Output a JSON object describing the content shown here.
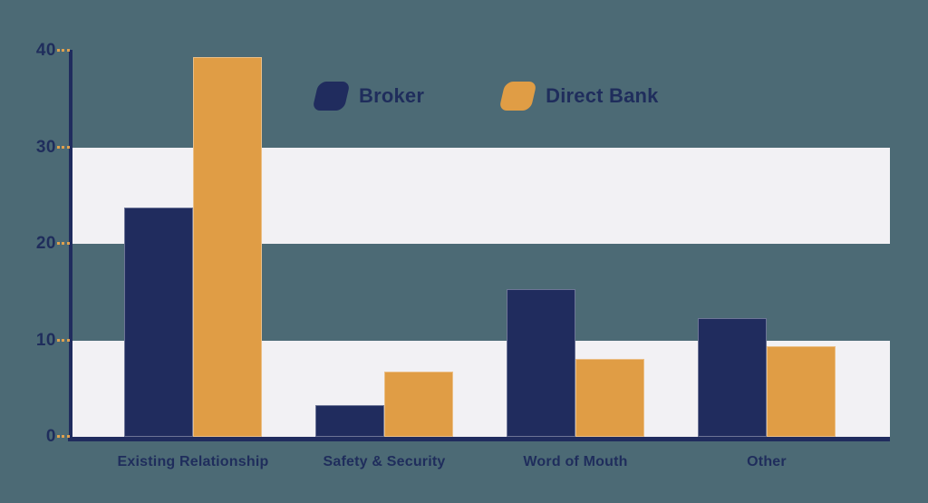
{
  "chart_data": {
    "type": "bar",
    "title": "",
    "categories": [
      "Existing Relationship",
      "Safety & Security",
      "Word of Mouth",
      "Other"
    ],
    "series": [
      {
        "name": "Broker",
        "color": "#202c5e",
        "values": [
          23.8,
          3.3,
          15.3,
          12.3
        ]
      },
      {
        "name": "Direct Bank",
        "color": "#e09d45",
        "values": [
          39.3,
          6.8,
          8.1,
          9.4
        ]
      }
    ],
    "xlabel": "",
    "ylabel": "",
    "ylim": [
      0,
      40
    ],
    "yticks": [
      0,
      10,
      20,
      30,
      40
    ],
    "band_ranges": [
      [
        0,
        10
      ],
      [
        20,
        30
      ]
    ],
    "grid": "horizontal-bands",
    "legend_position": "top-center",
    "colors": {
      "background": "#4c6a75",
      "band": "#f2f1f4",
      "axis": "#202c5e",
      "tick_mark": "#dfa14f",
      "text": "#1f2d5c"
    }
  }
}
